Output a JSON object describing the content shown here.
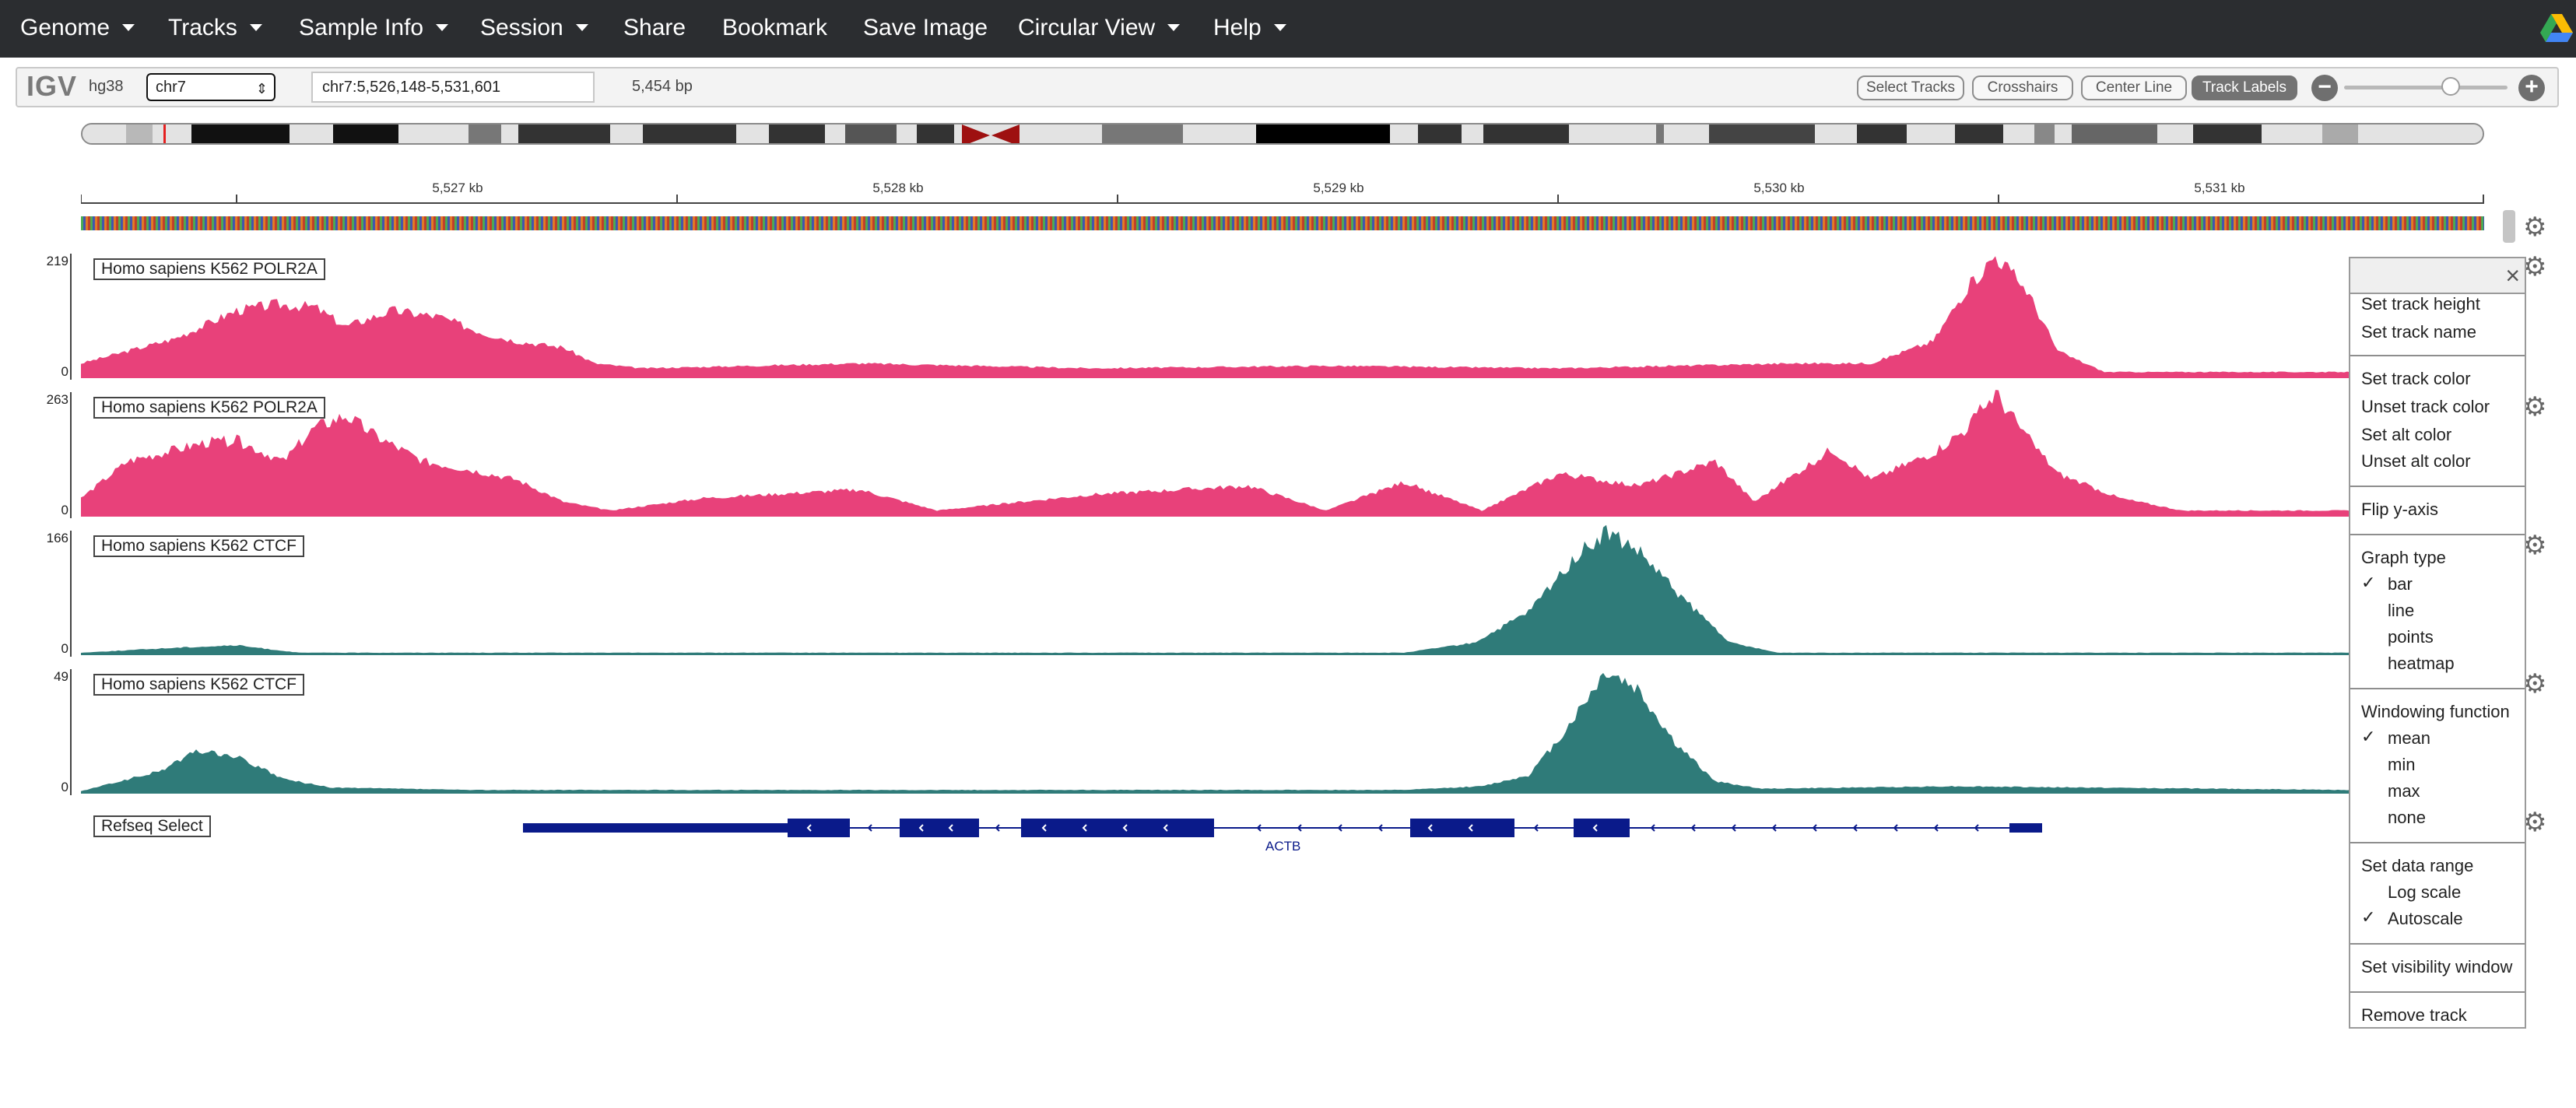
{
  "navbar": {
    "items": [
      {
        "label": "Genome",
        "dropdown": true
      },
      {
        "label": "Tracks",
        "dropdown": true
      },
      {
        "label": "Sample Info",
        "dropdown": true
      },
      {
        "label": "Session",
        "dropdown": true
      },
      {
        "label": "Share",
        "dropdown": false
      },
      {
        "label": "Bookmark",
        "dropdown": false
      },
      {
        "label": "Save Image",
        "dropdown": false
      },
      {
        "label": "Circular View",
        "dropdown": true
      },
      {
        "label": "Help",
        "dropdown": true
      }
    ]
  },
  "header": {
    "logo": "IGV",
    "genome": "hg38",
    "chromosome": "chr7",
    "locus": "chr7:5,526,148-5,531,601",
    "width": "5,454 bp",
    "buttons": [
      "Select Tracks",
      "Crosshairs",
      "Center Line",
      "Track Labels"
    ],
    "active_button": "Track Labels",
    "zoom_out": "−",
    "zoom_in": "+",
    "zoom_level": 0.6
  },
  "ruler": {
    "ticks": [
      "5,527 kb",
      "5,528 kb",
      "5,529 kb",
      "5,530 kb",
      "5,531 kb"
    ]
  },
  "tracks": [
    {
      "name": "Homo sapiens K562 POLR2A",
      "max": "219",
      "min": "0",
      "color": "#e8417a"
    },
    {
      "name": "Homo sapiens K562 POLR2A",
      "max": "263",
      "min": "0",
      "color": "#e8417a"
    },
    {
      "name": "Homo sapiens K562 CTCF",
      "max": "166",
      "min": "0",
      "color": "#2f7b79"
    },
    {
      "name": "Homo sapiens K562 CTCF",
      "max": "49",
      "min": "0",
      "color": "#2f7b79"
    }
  ],
  "annotation_track": {
    "name": "Refseq Select",
    "gene": "ACTB",
    "color": "#0a1a8a"
  },
  "track_menu": {
    "close": "×",
    "items": [
      {
        "label": "Set track height"
      },
      {
        "label": "Set track name"
      },
      {
        "label": "Set track color"
      },
      {
        "label": "Unset track color"
      },
      {
        "label": "Set alt color"
      },
      {
        "label": "Unset alt color"
      },
      {
        "label": "Flip y-axis"
      },
      {
        "label": "Graph type"
      },
      {
        "label": "bar",
        "checked": true
      },
      {
        "label": "line"
      },
      {
        "label": "points"
      },
      {
        "label": "heatmap"
      },
      {
        "label": "Windowing function"
      },
      {
        "label": "mean",
        "checked": true
      },
      {
        "label": "min"
      },
      {
        "label": "max"
      },
      {
        "label": "none"
      },
      {
        "label": "Set data range"
      },
      {
        "label": "Log scale"
      },
      {
        "label": "Autoscale",
        "checked": true
      },
      {
        "label": "Set visibility window"
      },
      {
        "label": "Remove track"
      }
    ]
  }
}
